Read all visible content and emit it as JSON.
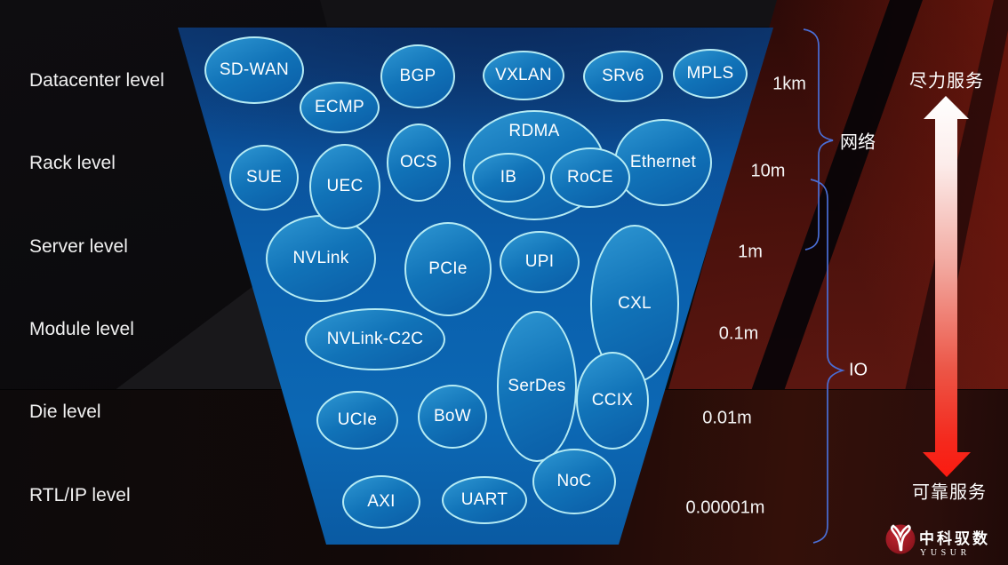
{
  "levels": [
    {
      "label": "Datacenter level",
      "distance": "1km"
    },
    {
      "label": "Rack level",
      "distance": "10m"
    },
    {
      "label": "Server level",
      "distance": "1m"
    },
    {
      "label": "Module level",
      "distance": "0.1m"
    },
    {
      "label": "Die level",
      "distance": "0.01m"
    },
    {
      "label": "RTL/IP level",
      "distance": "0.00001m"
    }
  ],
  "funnel": {
    "nodes": [
      {
        "label": "SD-WAN"
      },
      {
        "label": "ECMP"
      },
      {
        "label": "BGP"
      },
      {
        "label": "VXLAN"
      },
      {
        "label": "SRv6"
      },
      {
        "label": "MPLS"
      },
      {
        "label": "SUE"
      },
      {
        "label": "UEC"
      },
      {
        "label": "OCS"
      },
      {
        "label": "RDMA"
      },
      {
        "label": "IB"
      },
      {
        "label": "RoCE"
      },
      {
        "label": "Ethernet"
      },
      {
        "label": "NVLink"
      },
      {
        "label": "PCIe"
      },
      {
        "label": "UPI"
      },
      {
        "label": "CXL"
      },
      {
        "label": "NVLink-C2C"
      },
      {
        "label": "SerDes"
      },
      {
        "label": "CCIX"
      },
      {
        "label": "UCIe"
      },
      {
        "label": "BoW"
      },
      {
        "label": "NoC"
      },
      {
        "label": "AXI"
      },
      {
        "label": "UART"
      }
    ]
  },
  "brackets": [
    {
      "label": "网络"
    },
    {
      "label": "IO"
    }
  ],
  "service_axis": {
    "top": "尽力服务",
    "bottom": "可靠服务"
  },
  "logo": {
    "cn": "中科驭数",
    "en": "YUSUR"
  },
  "colors": {
    "funnel_blue": "#0a60ad",
    "bubble_border": "#b5ebf4",
    "brace_blue": "#4a6ed6",
    "arrow_red": "#fb1a10",
    "wall_red": "#4a110c",
    "logo_red": "#9c1a23"
  }
}
